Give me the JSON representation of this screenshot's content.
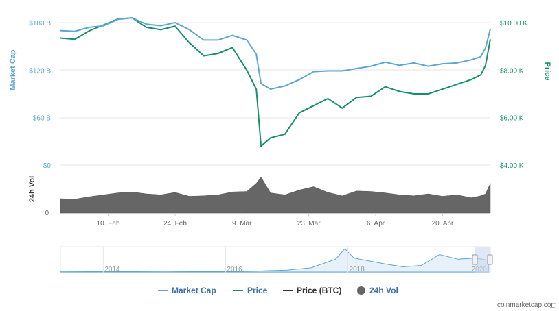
{
  "chart_data": {
    "type": "line",
    "title": "",
    "x_ticks": [
      "10. Feb",
      "24. Feb",
      "9. Mar",
      "23. Mar",
      "6. Apr",
      "20. Apr"
    ],
    "x_range": [
      "2020-01-31",
      "2020-04-30"
    ],
    "left_axis": {
      "label": "Market Cap",
      "ticks": [
        "$180 B",
        "$120 B",
        "$60 B",
        "$0"
      ],
      "range": [
        0,
        180
      ],
      "color": "#5da6d4"
    },
    "right_axis": {
      "label": "Price",
      "ticks": [
        "$10.00 K",
        "$8.00 K",
        "$6.00 K",
        "$4.00 K"
      ],
      "range": [
        4000,
        10000
      ],
      "color": "#16906b"
    },
    "volume_axis": {
      "label": "24h Vol",
      "ticks": [
        "0"
      ]
    },
    "series": [
      {
        "name": "Market Cap",
        "color": "#5da6d4",
        "x": [
          "2020-01-31",
          "2020-02-03",
          "2020-02-06",
          "2020-02-09",
          "2020-02-12",
          "2020-02-15",
          "2020-02-18",
          "2020-02-21",
          "2020-02-24",
          "2020-02-27",
          "2020-03-01",
          "2020-03-04",
          "2020-03-07",
          "2020-03-10",
          "2020-03-12",
          "2020-03-13",
          "2020-03-15",
          "2020-03-18",
          "2020-03-21",
          "2020-03-24",
          "2020-03-27",
          "2020-03-30",
          "2020-04-02",
          "2020-04-05",
          "2020-04-08",
          "2020-04-11",
          "2020-04-14",
          "2020-04-17",
          "2020-04-20",
          "2020-04-23",
          "2020-04-26",
          "2020-04-28",
          "2020-04-29",
          "2020-04-30"
        ],
        "values": [
          170,
          169,
          174,
          176,
          184,
          186,
          178,
          176,
          180,
          171,
          158,
          158,
          164,
          158,
          140,
          103,
          96,
          100,
          108,
          118,
          119,
          119,
          122,
          125,
          130,
          126,
          129,
          125,
          128,
          129,
          133,
          137,
          148,
          172
        ]
      },
      {
        "name": "Price",
        "color": "#16906b",
        "x": [
          "2020-01-31",
          "2020-02-03",
          "2020-02-06",
          "2020-02-09",
          "2020-02-12",
          "2020-02-15",
          "2020-02-18",
          "2020-02-21",
          "2020-02-24",
          "2020-02-27",
          "2020-03-01",
          "2020-03-04",
          "2020-03-07",
          "2020-03-10",
          "2020-03-12",
          "2020-03-13",
          "2020-03-15",
          "2020-03-18",
          "2020-03-21",
          "2020-03-24",
          "2020-03-27",
          "2020-03-30",
          "2020-04-02",
          "2020-04-05",
          "2020-04-08",
          "2020-04-11",
          "2020-04-14",
          "2020-04-17",
          "2020-04-20",
          "2020-04-23",
          "2020-04-26",
          "2020-04-28",
          "2020-04-29",
          "2020-04-30"
        ],
        "values": [
          9350,
          9300,
          9650,
          9900,
          10150,
          10200,
          9800,
          9700,
          9850,
          9150,
          8600,
          8700,
          8950,
          8000,
          7200,
          4800,
          5150,
          5300,
          6200,
          6500,
          6800,
          6400,
          6850,
          6900,
          7300,
          7100,
          7000,
          7000,
          7200,
          7400,
          7600,
          7800,
          8200,
          9300
        ]
      },
      {
        "name": "Price (BTC)",
        "color": "#555555",
        "values": []
      },
      {
        "name": "24h Vol",
        "color": "#666666",
        "type": "area",
        "x": [
          "2020-01-31",
          "2020-02-03",
          "2020-02-06",
          "2020-02-09",
          "2020-02-12",
          "2020-02-15",
          "2020-02-18",
          "2020-02-21",
          "2020-02-24",
          "2020-02-27",
          "2020-03-01",
          "2020-03-04",
          "2020-03-07",
          "2020-03-10",
          "2020-03-12",
          "2020-03-13",
          "2020-03-15",
          "2020-03-18",
          "2020-03-21",
          "2020-03-24",
          "2020-03-27",
          "2020-03-30",
          "2020-04-02",
          "2020-04-05",
          "2020-04-08",
          "2020-04-11",
          "2020-04-14",
          "2020-04-17",
          "2020-04-20",
          "2020-04-23",
          "2020-04-26",
          "2020-04-28",
          "2020-04-29",
          "2020-04-30"
        ],
        "values": [
          0.3,
          0.29,
          0.34,
          0.38,
          0.42,
          0.44,
          0.4,
          0.38,
          0.43,
          0.35,
          0.36,
          0.38,
          0.44,
          0.45,
          0.62,
          0.75,
          0.42,
          0.38,
          0.48,
          0.55,
          0.43,
          0.36,
          0.46,
          0.45,
          0.42,
          0.38,
          0.36,
          0.4,
          0.35,
          0.38,
          0.32,
          0.36,
          0.4,
          0.62
        ]
      }
    ],
    "navigator": {
      "labels": [
        "2014",
        "2016",
        "2018",
        "2020"
      ],
      "x": [
        2013.3,
        2014,
        2015,
        2016,
        2016.5,
        2017,
        2017.4,
        2017.8,
        2017.95,
        2018.1,
        2018.3,
        2018.6,
        2018.9,
        2019.2,
        2019.5,
        2019.8,
        2020.1,
        2020.3
      ],
      "values": [
        0.01,
        0.02,
        0.01,
        0.02,
        0.04,
        0.08,
        0.18,
        0.55,
        1.0,
        0.6,
        0.5,
        0.35,
        0.22,
        0.28,
        0.75,
        0.55,
        0.6,
        0.5
      ]
    },
    "legend": {
      "placement": "bottom",
      "items": [
        "Market Cap",
        "Price",
        "Price (BTC)",
        "24h Vol"
      ]
    },
    "credit": "coinmarketcap.com"
  }
}
